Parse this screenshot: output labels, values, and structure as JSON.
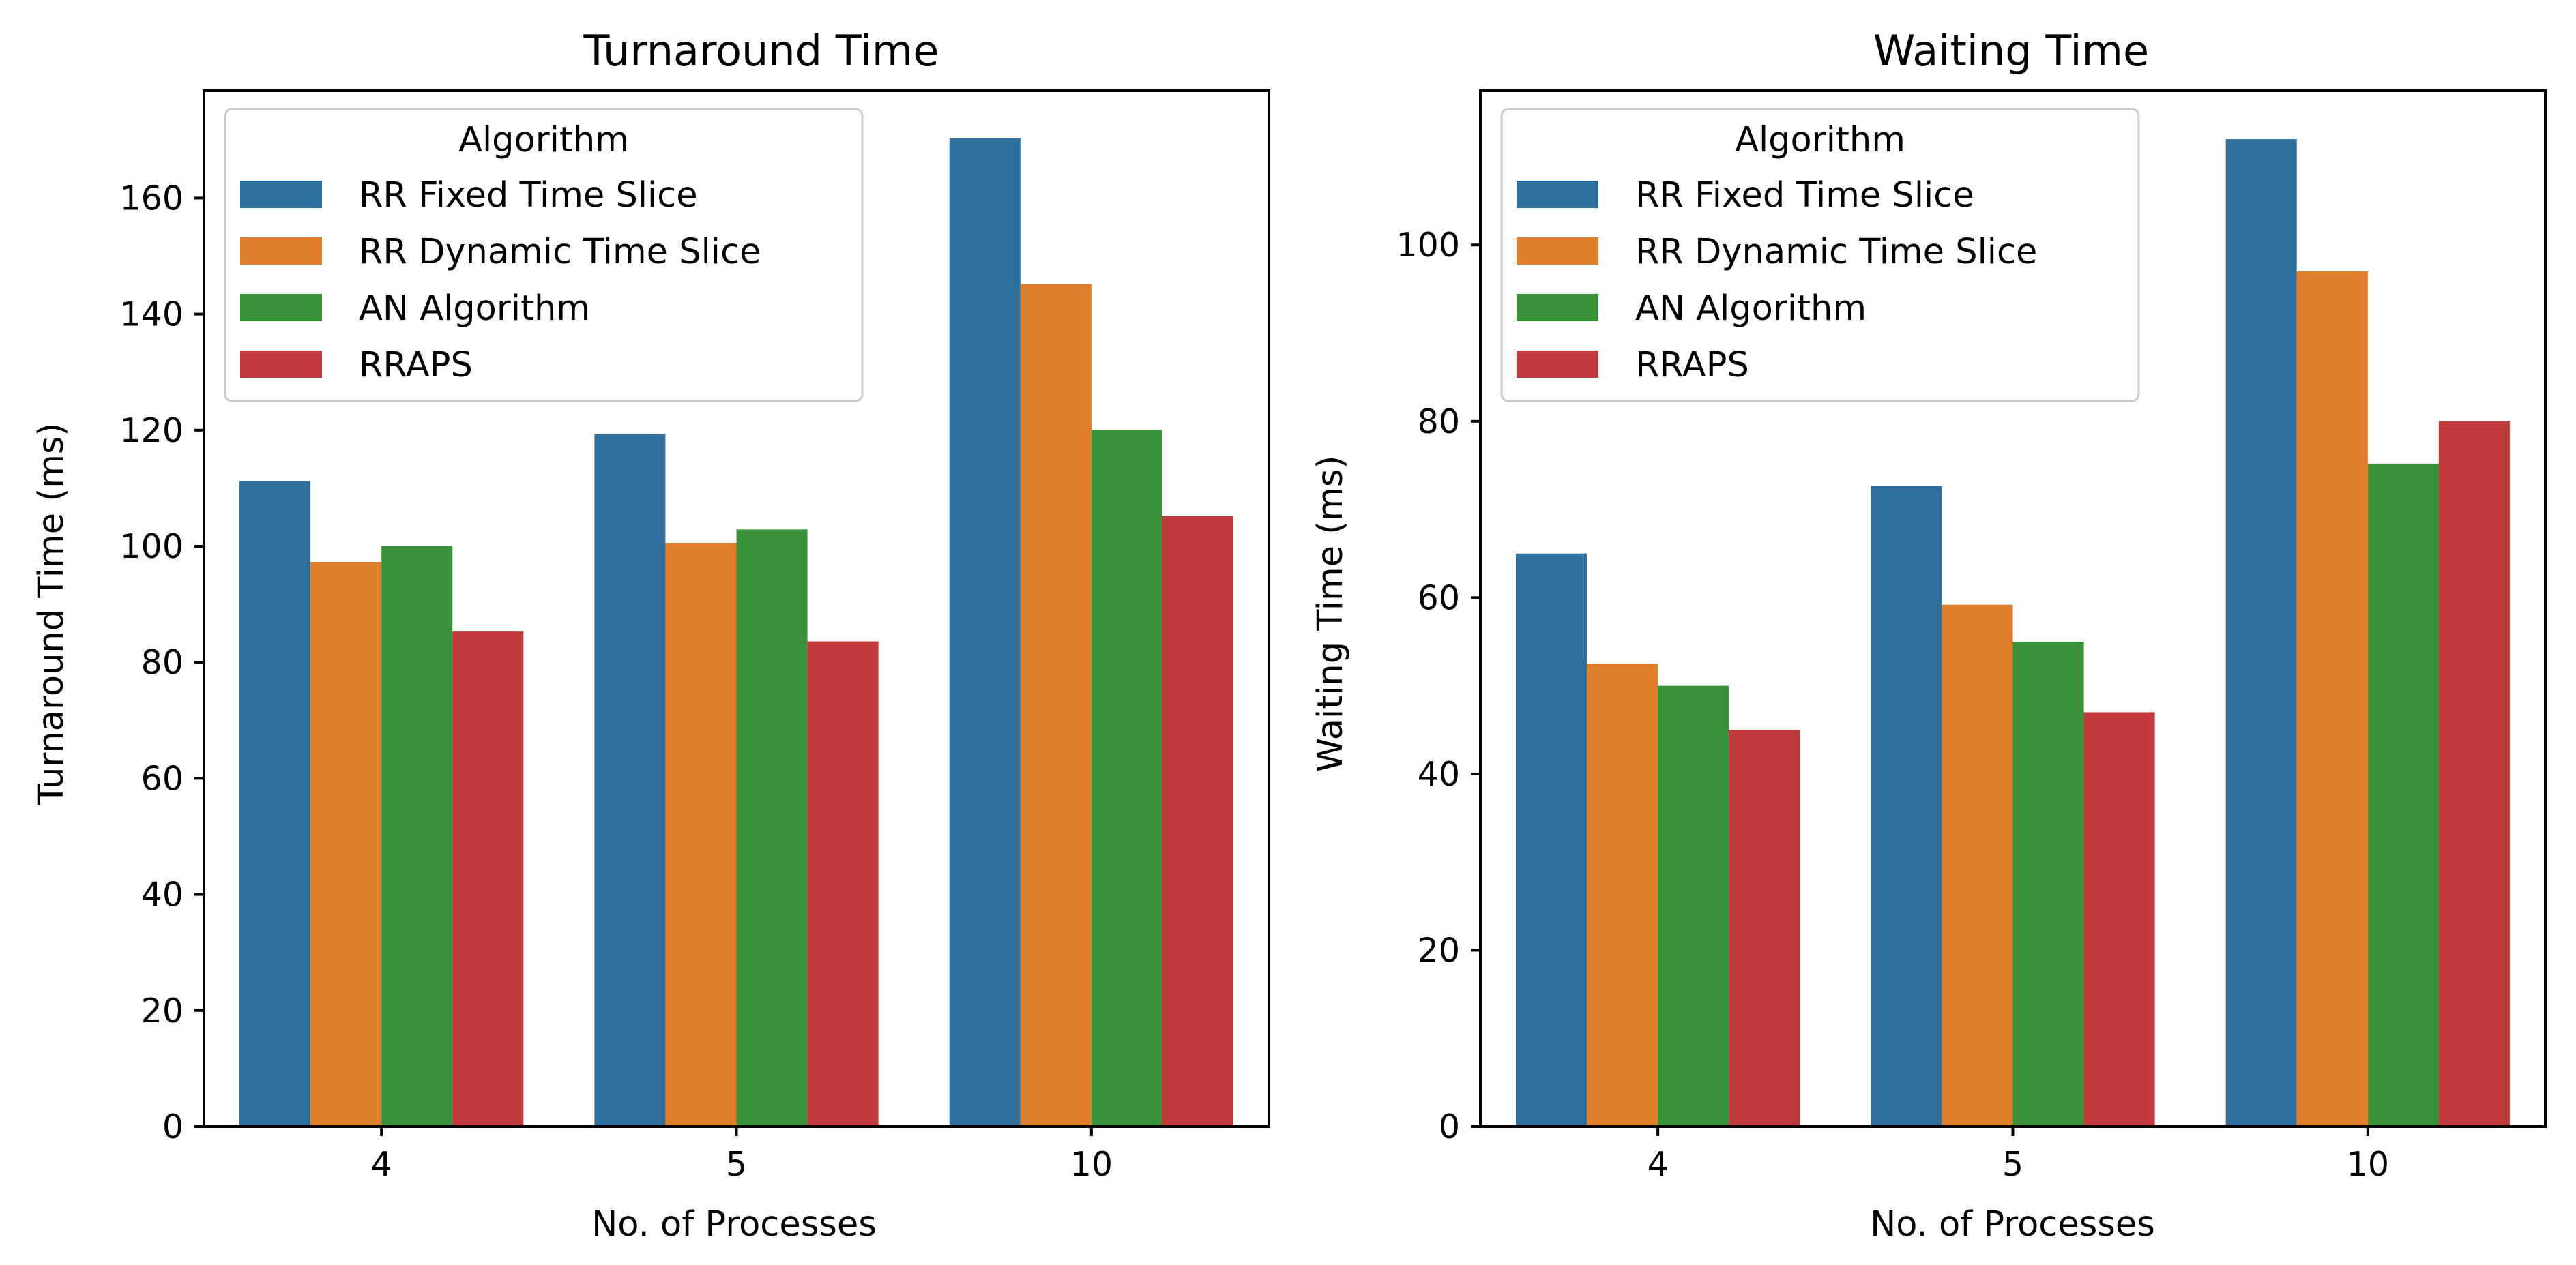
{
  "colors": {
    "rr_fixed": "#2e6f9e",
    "rr_dynamic": "#e17e2b",
    "an": "#3a913a",
    "rraps": "#c03a3b"
  },
  "chart_data": [
    {
      "type": "bar",
      "title": "Turnaround Time",
      "xlabel": "No. of Processes",
      "ylabel": "Turnaround Time (ms)",
      "categories": [
        "4",
        "5",
        "10"
      ],
      "ylim": [
        0,
        178.5
      ],
      "yticks": [
        0,
        20,
        40,
        60,
        80,
        100,
        120,
        140,
        160
      ],
      "legend": {
        "title": "Algorithm",
        "position": "top-left"
      },
      "series": [
        {
          "name": "RR Fixed Time Slice",
          "color_key": "rr_fixed",
          "values": [
            111.2,
            119.3,
            170.3
          ]
        },
        {
          "name": "RR Dynamic Time Slice",
          "color_key": "rr_dynamic",
          "values": [
            97.3,
            100.6,
            145.2
          ]
        },
        {
          "name": "AN Algorithm",
          "color_key": "an",
          "values": [
            100.1,
            102.9,
            120.1
          ]
        },
        {
          "name": "RRAPS",
          "color_key": "rraps",
          "values": [
            85.3,
            83.6,
            105.2
          ]
        }
      ]
    },
    {
      "type": "bar",
      "title": "Waiting Time",
      "xlabel": "No. of Processes",
      "ylabel": "Waiting Time (ms)",
      "categories": [
        "4",
        "5",
        "10"
      ],
      "ylim": [
        0,
        117.5
      ],
      "yticks": [
        0,
        20,
        40,
        60,
        80,
        100
      ],
      "legend": {
        "title": "Algorithm",
        "position": "top-left"
      },
      "series": [
        {
          "name": "RR Fixed Time Slice",
          "color_key": "rr_fixed",
          "values": [
            65.0,
            72.7,
            112.0
          ]
        },
        {
          "name": "RR Dynamic Time Slice",
          "color_key": "rr_dynamic",
          "values": [
            52.5,
            59.2,
            97.0
          ]
        },
        {
          "name": "AN Algorithm",
          "color_key": "an",
          "values": [
            50.0,
            55.0,
            75.2
          ]
        },
        {
          "name": "RRAPS",
          "color_key": "rraps",
          "values": [
            45.0,
            47.0,
            80.0
          ]
        }
      ]
    }
  ]
}
